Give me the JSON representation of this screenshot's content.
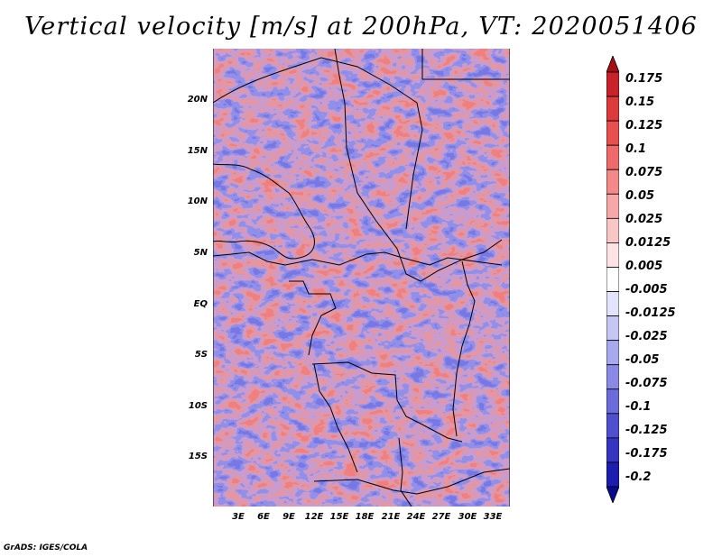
{
  "title": "Vertical velocity [m/s] at 200hPa, VT: 2020051406",
  "map": {
    "description_field": "vertical-velocity-200hpa",
    "lon_range": [
      0,
      35
    ],
    "lat_range": [
      -20,
      24
    ],
    "lat_ticks": [
      {
        "value": 20,
        "label": "20N"
      },
      {
        "value": 15,
        "label": "15N"
      },
      {
        "value": 10,
        "label": "10N"
      },
      {
        "value": 5,
        "label": "5N"
      },
      {
        "value": 0,
        "label": "EQ"
      },
      {
        "value": -5,
        "label": "5S"
      },
      {
        "value": -10,
        "label": "10S"
      },
      {
        "value": -15,
        "label": "15S"
      }
    ],
    "lon_ticks": [
      {
        "value": 3,
        "label": "3E"
      },
      {
        "value": 6,
        "label": "6E"
      },
      {
        "value": 9,
        "label": "9E"
      },
      {
        "value": 12,
        "label": "12E"
      },
      {
        "value": 15,
        "label": "15E"
      },
      {
        "value": 18,
        "label": "18E"
      },
      {
        "value": 21,
        "label": "21E"
      },
      {
        "value": 24,
        "label": "24E"
      },
      {
        "value": 27,
        "label": "27E"
      },
      {
        "value": 30,
        "label": "30E"
      },
      {
        "value": 33,
        "label": "33E"
      }
    ]
  },
  "colorbar": {
    "labels": [
      "0.175",
      "0.15",
      "0.125",
      "0.1",
      "0.075",
      "0.05",
      "0.025",
      "0.0125",
      "0.005",
      "-0.005",
      "-0.0125",
      "-0.025",
      "-0.05",
      "-0.075",
      "-0.1",
      "-0.125",
      "-0.175",
      "-0.2"
    ],
    "colors": [
      "#a50f15",
      "#c8222a",
      "#dd3b3b",
      "#e85050",
      "#ef6b6b",
      "#f38989",
      "#f6a7a7",
      "#f9c6c6",
      "#fde3e3",
      "#ffffff",
      "#e3e3fb",
      "#c6c6f5",
      "#a8a8ee",
      "#8a8ae6",
      "#6b6bdc",
      "#4f4fd0",
      "#3535c2",
      "#1d1db0",
      "#0a0a8c"
    ]
  },
  "footer": "GrADS: IGES/COLA"
}
